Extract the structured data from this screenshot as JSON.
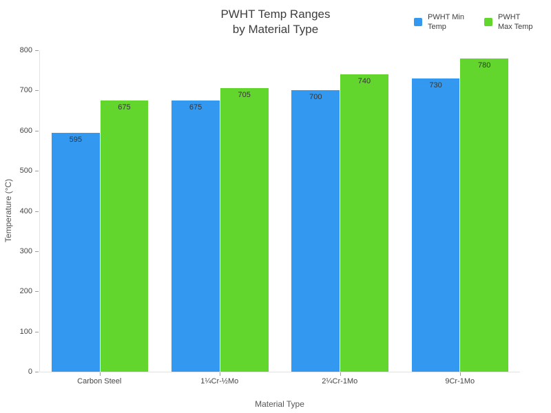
{
  "title": "PWHT Temp Ranges\nby Material Type",
  "chart_data": {
    "type": "bar",
    "title": "PWHT Temp Ranges by Material Type",
    "categories": [
      "Carbon Steel",
      "1¼Cr-½Mo",
      "2¼Cr-1Mo",
      "9Cr-1Mo"
    ],
    "series": [
      {
        "name": "PWHT Min Temp",
        "color": "#3399F0",
        "values": [
          595,
          675,
          700,
          730
        ]
      },
      {
        "name": "PWHT Max Temp",
        "color": "#63D62D",
        "values": [
          675,
          705,
          740,
          780
        ]
      }
    ],
    "xlabel": "Material Type",
    "ylabel": "Temperature (°C)",
    "ylim": [
      0,
      800
    ],
    "ytick_step": 100,
    "grid": false,
    "legend_position": "top-right",
    "bar_value_labels": true
  },
  "colors": {
    "min_temp_bar": "#3399F0",
    "max_temp_bar": "#63D62D",
    "axis_line": "#e2e2e2",
    "tick_text": "#444444",
    "title_text": "#3d3d3d"
  }
}
